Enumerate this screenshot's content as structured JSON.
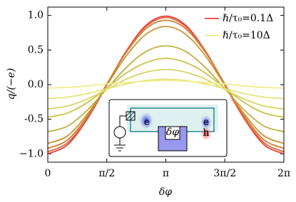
{
  "chart_data": {
    "type": "line",
    "xlabel": "δφ",
    "ylabel": "q/(−e)",
    "x": [
      0,
      0.5236,
      1.0472,
      1.5708,
      2.0944,
      2.618,
      3.1416,
      3.6652,
      4.1888,
      4.7124,
      5.236,
      5.7596,
      6.2832
    ],
    "series": [
      {
        "name": "ℏ/τ₀=0.1Δ",
        "color": "#e8423a",
        "values": [
          -1.0,
          -0.87,
          -0.5,
          -0.01,
          0.49,
          0.86,
          0.99,
          0.86,
          0.49,
          -0.01,
          -0.5,
          -0.87,
          -1.0
        ]
      },
      {
        "color": "#e2623c",
        "values": [
          -0.97,
          -0.84,
          -0.49,
          0.0,
          0.49,
          0.84,
          0.97,
          0.84,
          0.49,
          0.0,
          -0.49,
          -0.84,
          -0.97
        ]
      },
      {
        "color": "#d67c34",
        "values": [
          -0.92,
          -0.8,
          -0.46,
          0.01,
          0.47,
          0.81,
          0.93,
          0.81,
          0.47,
          0.01,
          -0.46,
          -0.8,
          -0.92
        ]
      },
      {
        "color": "#c99434",
        "values": [
          -0.85,
          -0.74,
          -0.43,
          -0.01,
          0.42,
          0.73,
          0.84,
          0.73,
          0.42,
          -0.01,
          -0.43,
          -0.74,
          -0.85
        ]
      },
      {
        "color": "#c2b040",
        "values": [
          -0.68,
          -0.6,
          -0.37,
          -0.06,
          0.25,
          0.48,
          0.56,
          0.48,
          0.25,
          -0.06,
          -0.37,
          -0.6,
          -0.68
        ]
      },
      {
        "color": "#cbc24c",
        "values": [
          -0.47,
          -0.41,
          -0.26,
          -0.05,
          0.17,
          0.32,
          0.38,
          0.32,
          0.17,
          -0.05,
          -0.26,
          -0.41,
          -0.47
        ]
      },
      {
        "color": "#d8d462",
        "values": [
          -0.35,
          -0.31,
          -0.21,
          -0.07,
          0.08,
          0.18,
          0.22,
          0.18,
          0.08,
          -0.07,
          -0.21,
          -0.31,
          -0.35
        ]
      },
      {
        "color": "#e6e27a",
        "values": [
          -0.2,
          -0.18,
          -0.13,
          -0.06,
          0.01,
          0.06,
          0.08,
          0.06,
          0.01,
          -0.06,
          -0.13,
          -0.18,
          -0.2
        ]
      },
      {
        "name": "ℏ/τ₀=10Δ",
        "color": "#f0ec8c",
        "values": [
          -0.05,
          -0.04,
          -0.02,
          0.01,
          0.03,
          0.05,
          0.06,
          0.05,
          0.03,
          0.01,
          -0.02,
          -0.04,
          -0.05
        ]
      }
    ],
    "xlim": [
      0,
      6.2832
    ],
    "ylim": [
      -1.12,
      1.12
    ],
    "xticks": [
      {
        "value": 0,
        "label": "0"
      },
      {
        "value": 1.5708,
        "label": "π/2"
      },
      {
        "value": 3.1416,
        "label": "π"
      },
      {
        "value": 4.7124,
        "label": "3π/2"
      },
      {
        "value": 6.2832,
        "label": "2π"
      }
    ],
    "yticks": [
      {
        "value": -1,
        "label": "−1.0"
      },
      -0.5,
      {
        "value": 0,
        "label": "0.0"
      },
      0.5,
      {
        "value": 1,
        "label": "1.0"
      }
    ],
    "legend": "upper right",
    "inset_labels": [
      "e",
      "δφ",
      "e",
      "h"
    ]
  }
}
